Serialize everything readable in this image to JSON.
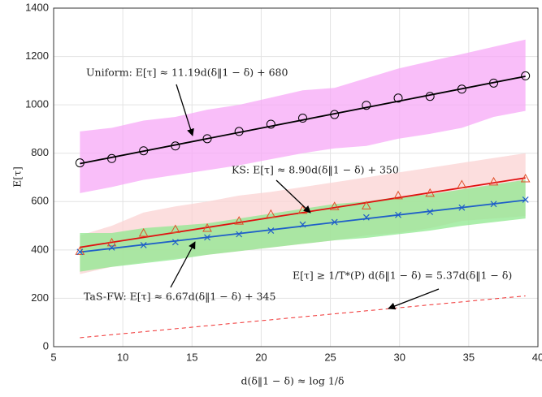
{
  "chart_data": {
    "type": "line",
    "xlabel": "d(δ‖1 − δ) ≈ log 1/δ",
    "ylabel": "E[τ]",
    "xlim": [
      5,
      40
    ],
    "ylim": [
      0,
      1400
    ],
    "xticks": [
      5,
      10,
      15,
      20,
      25,
      30,
      35,
      40
    ],
    "yticks": [
      0,
      200,
      400,
      600,
      800,
      1000,
      1200,
      1400
    ],
    "grid": true,
    "x": [
      6.9,
      9.2,
      11.5,
      13.8,
      16.1,
      18.4,
      20.7,
      23.0,
      25.3,
      27.6,
      29.9,
      32.2,
      34.5,
      36.8,
      39.1
    ],
    "bands": [
      {
        "color": "#f7a8f7",
        "lower": [
          635,
          660,
          690,
          710,
          730,
          750,
          775,
          800,
          820,
          830,
          860,
          880,
          905,
          950,
          975
        ],
        "upper": [
          890,
          905,
          935,
          950,
          980,
          1000,
          1030,
          1060,
          1070,
          1110,
          1150,
          1180,
          1210,
          1240,
          1270
        ]
      },
      {
        "color": "#fbd3d3",
        "lower": [
          300,
          330,
          350,
          365,
          380,
          395,
          410,
          425,
          440,
          460,
          470,
          490,
          520,
          530,
          540
        ],
        "upper": [
          460,
          500,
          555,
          580,
          600,
          625,
          640,
          660,
          680,
          700,
          720,
          740,
          760,
          780,
          800
        ]
      },
      {
        "color": "#8fe88f",
        "lower": [
          310,
          330,
          345,
          360,
          380,
          395,
          410,
          425,
          440,
          450,
          465,
          480,
          500,
          515,
          530
        ],
        "upper": [
          470,
          470,
          490,
          500,
          510,
          530,
          550,
          570,
          590,
          600,
          620,
          630,
          650,
          670,
          690
        ]
      }
    ],
    "fits": [
      {
        "color": "#000000",
        "x": [
          6.9,
          39.1
        ],
        "values": [
          757,
          1118
        ]
      },
      {
        "color": "#e01010",
        "x": [
          6.9,
          39.1
        ],
        "values": [
          411,
          698
        ]
      },
      {
        "color": "#1f5fc8",
        "x": [
          6.9,
          39.1
        ],
        "values": [
          391,
          606
        ]
      },
      {
        "color": "#f03030",
        "x": [
          6.9,
          39.1
        ],
        "values": [
          37,
          210
        ],
        "dashed": true
      }
    ],
    "series": [
      {
        "color": "#000000",
        "marker": "circle",
        "values": [
          760,
          778,
          810,
          830,
          860,
          890,
          920,
          945,
          960,
          998,
          1028,
          1035,
          1065,
          1090,
          1120
        ]
      },
      {
        "color": "#e0502a",
        "marker": "triangle",
        "values": [
          395,
          430,
          470,
          485,
          490,
          520,
          548,
          565,
          580,
          583,
          625,
          635,
          670,
          682,
          695
        ]
      },
      {
        "color": "#1f5fc8",
        "marker": "cross",
        "values": [
          392,
          410,
          420,
          432,
          452,
          465,
          480,
          505,
          515,
          535,
          545,
          557,
          575,
          590,
          608
        ]
      }
    ],
    "annotations": [
      "Uniform: E[τ] ≈ 11.19d(δ‖1 − δ) + 680",
      "KS: E[τ] ≈ 8.90d(δ‖1 − δ) + 350",
      "TaS-FW: E[τ] ≈ 6.67d(δ‖1 − δ) + 345",
      "E[τ] ≥ 1/T*(P) d(δ‖1 − δ) = 5.37d(δ‖1 − δ)"
    ]
  }
}
